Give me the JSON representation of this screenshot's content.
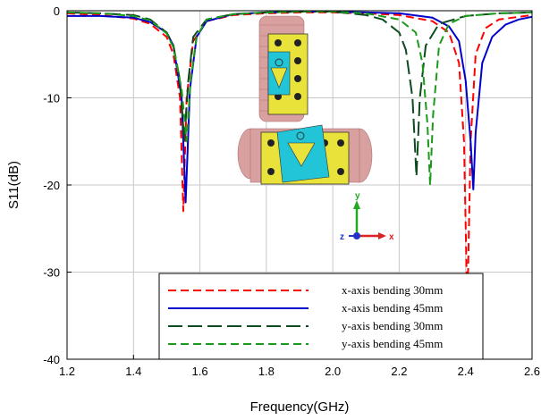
{
  "chart_data": {
    "type": "line",
    "title": "",
    "xlabel": "Frequency(GHz)",
    "ylabel": "S11(dB)",
    "xlim": [
      1.2,
      2.6
    ],
    "ylim": [
      -40,
      0
    ],
    "x_ticks": [
      "1.2",
      "1.4",
      "1.6",
      "1.8",
      "2.0",
      "2.2",
      "2.4",
      "2.6"
    ],
    "y_ticks": [
      "0",
      "-10",
      "-20",
      "-30",
      "-40"
    ],
    "grid": true,
    "legend_position": "bottom-right",
    "series": [
      {
        "name": "x-axis bending 30mm",
        "color": "#ff0000",
        "dash": "dashed",
        "points": [
          [
            1.2,
            -0.3
          ],
          [
            1.3,
            -0.5
          ],
          [
            1.4,
            -0.9
          ],
          [
            1.45,
            -1.5
          ],
          [
            1.5,
            -3.0
          ],
          [
            1.52,
            -5.0
          ],
          [
            1.54,
            -10.0
          ],
          [
            1.55,
            -23.0
          ],
          [
            1.56,
            -10.0
          ],
          [
            1.58,
            -3.5
          ],
          [
            1.62,
            -1.2
          ],
          [
            1.7,
            -0.5
          ],
          [
            1.8,
            -0.3
          ],
          [
            1.9,
            -0.2
          ],
          [
            2.0,
            -0.2
          ],
          [
            2.1,
            -0.3
          ],
          [
            2.2,
            -0.5
          ],
          [
            2.3,
            -1.2
          ],
          [
            2.35,
            -2.5
          ],
          [
            2.38,
            -6.0
          ],
          [
            2.395,
            -15.0
          ],
          [
            2.405,
            -34.5
          ],
          [
            2.415,
            -15.0
          ],
          [
            2.43,
            -5.0
          ],
          [
            2.46,
            -2.0
          ],
          [
            2.5,
            -1.0
          ],
          [
            2.6,
            -0.5
          ]
        ]
      },
      {
        "name": "x-axis bending 45mm",
        "color": "#0000cc",
        "dash": "solid",
        "points": [
          [
            1.2,
            -0.6
          ],
          [
            1.3,
            -0.6
          ],
          [
            1.4,
            -0.8
          ],
          [
            1.45,
            -1.3
          ],
          [
            1.5,
            -2.5
          ],
          [
            1.52,
            -4.0
          ],
          [
            1.545,
            -10.0
          ],
          [
            1.557,
            -22.0
          ],
          [
            1.57,
            -9.0
          ],
          [
            1.59,
            -3.0
          ],
          [
            1.62,
            -1.2
          ],
          [
            1.7,
            -0.4
          ],
          [
            1.8,
            -0.2
          ],
          [
            1.9,
            -0.1
          ],
          [
            2.0,
            -0.1
          ],
          [
            2.1,
            -0.2
          ],
          [
            2.2,
            -0.3
          ],
          [
            2.3,
            -0.8
          ],
          [
            2.35,
            -1.8
          ],
          [
            2.38,
            -3.5
          ],
          [
            2.4,
            -8.0
          ],
          [
            2.415,
            -15.0
          ],
          [
            2.423,
            -20.5
          ],
          [
            2.43,
            -14.0
          ],
          [
            2.45,
            -6.0
          ],
          [
            2.48,
            -3.0
          ],
          [
            2.52,
            -1.6
          ],
          [
            2.56,
            -1.0
          ],
          [
            2.6,
            -0.7
          ]
        ]
      },
      {
        "name": "y-axis bending 30mm",
        "color": "#0d4a1f",
        "dash": "long-dash",
        "points": [
          [
            1.2,
            -0.2
          ],
          [
            1.3,
            -0.3
          ],
          [
            1.4,
            -0.5
          ],
          [
            1.45,
            -1.0
          ],
          [
            1.5,
            -2.5
          ],
          [
            1.52,
            -4.0
          ],
          [
            1.54,
            -8.0
          ],
          [
            1.553,
            -15.0
          ],
          [
            1.565,
            -8.0
          ],
          [
            1.58,
            -3.0
          ],
          [
            1.62,
            -1.0
          ],
          [
            1.7,
            -0.4
          ],
          [
            1.8,
            -0.2
          ],
          [
            1.9,
            -0.1
          ],
          [
            2.0,
            -0.1
          ],
          [
            2.1,
            -0.5
          ],
          [
            2.15,
            -1.0
          ],
          [
            2.2,
            -2.5
          ],
          [
            2.22,
            -4.5
          ],
          [
            2.24,
            -10.0
          ],
          [
            2.252,
            -19.0
          ],
          [
            2.262,
            -10.0
          ],
          [
            2.28,
            -4.0
          ],
          [
            2.32,
            -1.5
          ],
          [
            2.4,
            -0.6
          ],
          [
            2.5,
            -0.3
          ],
          [
            2.6,
            -0.2
          ]
        ]
      },
      {
        "name": "y-axis bending 45mm",
        "color": "#1a9a1a",
        "dash": "dashed",
        "points": [
          [
            1.2,
            -0.2
          ],
          [
            1.3,
            -0.3
          ],
          [
            1.4,
            -0.6
          ],
          [
            1.45,
            -1.1
          ],
          [
            1.5,
            -2.6
          ],
          [
            1.52,
            -4.2
          ],
          [
            1.545,
            -9.0
          ],
          [
            1.56,
            -15.0
          ],
          [
            1.572,
            -8.0
          ],
          [
            1.59,
            -3.0
          ],
          [
            1.62,
            -1.0
          ],
          [
            1.7,
            -0.4
          ],
          [
            1.8,
            -0.2
          ],
          [
            1.9,
            -0.1
          ],
          [
            2.0,
            -0.1
          ],
          [
            2.1,
            -0.3
          ],
          [
            2.2,
            -1.0
          ],
          [
            2.25,
            -2.5
          ],
          [
            2.27,
            -6.0
          ],
          [
            2.285,
            -13.0
          ],
          [
            2.293,
            -20.0
          ],
          [
            2.302,
            -12.0
          ],
          [
            2.32,
            -4.0
          ],
          [
            2.35,
            -1.5
          ],
          [
            2.4,
            -0.6
          ],
          [
            2.5,
            -0.3
          ],
          [
            2.6,
            -0.2
          ]
        ]
      }
    ]
  },
  "inset": {
    "axis_letters": {
      "y": "y",
      "z": "z",
      "x": "x"
    }
  }
}
